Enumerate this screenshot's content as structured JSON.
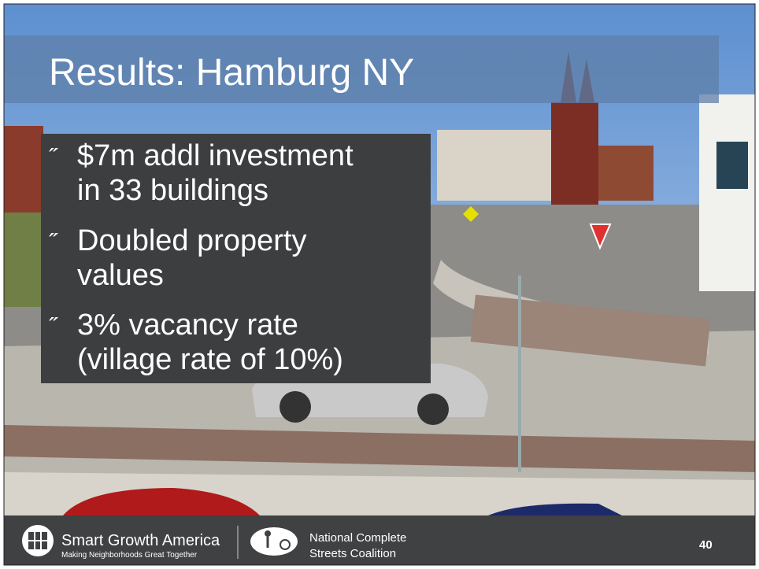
{
  "slide": {
    "title": "Results: Hamburg NY",
    "bullets": [
      {
        "marker": "˝",
        "lines": [
          "$7m addl investment",
          "in 33 buildings"
        ]
      },
      {
        "marker": "˝",
        "lines": [
          "Doubled property",
          "values"
        ]
      },
      {
        "marker": "˝",
        "lines": [
          "3% vacancy rate",
          "(village rate of 10%)"
        ]
      }
    ],
    "footer": {
      "org1_name": "Smart Growth America",
      "org1_tagline": "Making Neighborhoods Great Together",
      "org2_line1": "National Complete",
      "org2_line2": "Streets Coalition",
      "page_number": "40"
    }
  }
}
